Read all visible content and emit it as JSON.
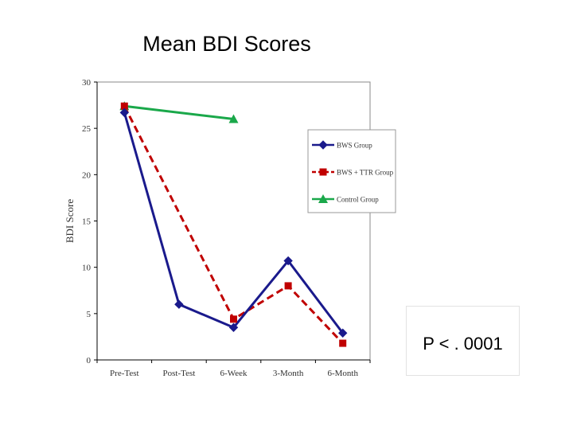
{
  "slide": {
    "title": "Mean BDI Scores",
    "annotation": "P < . 0001"
  },
  "chart_data": {
    "type": "line",
    "title": "",
    "xlabel": "",
    "ylabel": "BDI Score",
    "categories": [
      "Pre-Test",
      "Post-Test",
      "6-Week",
      "3-Month",
      "6-Month"
    ],
    "ylim": [
      0,
      30
    ],
    "yticks": [
      0,
      5,
      10,
      15,
      20,
      25,
      30
    ],
    "grid": false,
    "legend_position": "right",
    "series": [
      {
        "name": "BWS Group",
        "values": [
          26.7,
          6.0,
          3.5,
          10.7,
          2.9
        ],
        "color": "#1a1a8c",
        "marker": "diamond",
        "dash": false
      },
      {
        "name": "BWS + TTR Group",
        "values": [
          27.4,
          null,
          4.4,
          8.0,
          1.8
        ],
        "color": "#c00000",
        "marker": "square",
        "dash": true
      },
      {
        "name": "Control Group",
        "values": [
          27.4,
          null,
          26.0,
          null,
          null
        ],
        "color": "#1aa84a",
        "marker": "triangle",
        "dash": false
      }
    ]
  }
}
